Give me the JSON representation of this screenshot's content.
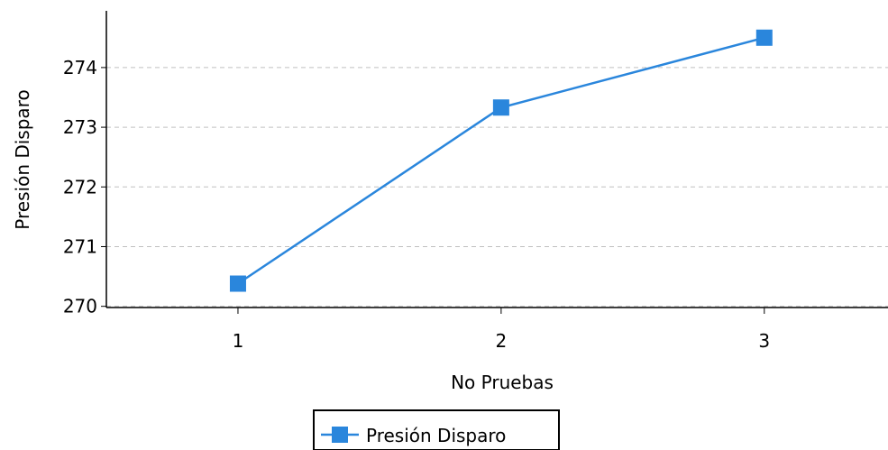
{
  "chart_data": {
    "type": "line",
    "title": "",
    "xlabel": "No Pruebas",
    "ylabel": "Presión Disparo",
    "x": [
      1,
      2,
      3
    ],
    "x_tick_labels": [
      "1",
      "2",
      "3"
    ],
    "y_tick_labels": [
      "270",
      "271",
      "272",
      "273",
      "274"
    ],
    "ylim": [
      269.98,
      274.95
    ],
    "xlim": [
      0.5,
      3.47
    ],
    "grid": "horizontal dashed",
    "legend_position": "bottom-center",
    "series": [
      {
        "name": "Presión Disparo",
        "values": [
          270.38,
          273.33,
          274.5
        ],
        "color": "#2a86dc",
        "marker": "square"
      }
    ]
  }
}
